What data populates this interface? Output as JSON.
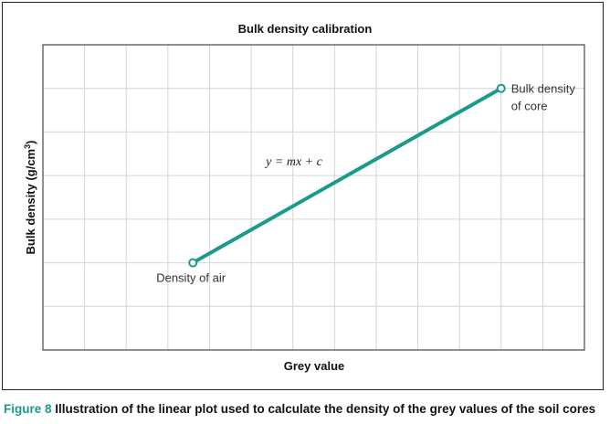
{
  "chart_data": {
    "type": "line",
    "title": "Bulk density calibration",
    "xlabel": "Grey value",
    "ylabel_main": "Bulk density (g/cm",
    "ylabel_sup": "3",
    "ylabel_close": ")",
    "grid": true,
    "series": [
      {
        "x": [
          3.6,
          11
        ],
        "y": [
          2,
          6
        ]
      }
    ],
    "xlim": [
      0,
      13
    ],
    "ylim": [
      0,
      7
    ],
    "annotations": {
      "air": "Density of air",
      "core_line1": "Bulk density",
      "core_line2": "of core",
      "equation": "y = mx + c"
    },
    "colors": {
      "line": "#1a9a8a",
      "grid": "#d4d4d4",
      "axis": "#222222"
    }
  },
  "caption": {
    "figure_label": "Figure 8",
    "text": " Illustration of the linear plot used to calculate the density of the grey values of the soil cores"
  }
}
